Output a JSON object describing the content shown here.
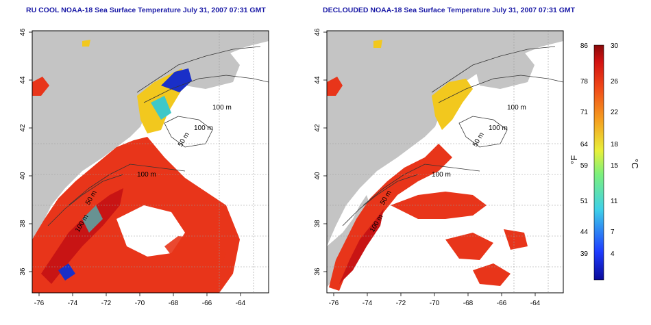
{
  "panels": [
    {
      "title": "RU COOL NOAA-18 Sea Surface Temperature July 31, 2007 07:31 GMT",
      "contour_labels": [
        "100 m",
        "100 m",
        "50 m",
        "100 m",
        "50 m",
        "100 m"
      ]
    },
    {
      "title": "DECLOUDED NOAA-18 Sea Surface Temperature July 31, 2007 07:31 GMT",
      "contour_labels": [
        "100 m",
        "100 m",
        "50 m",
        "100 m",
        "50 m",
        "100 m"
      ]
    }
  ],
  "axes": {
    "x_ticks": [
      "-76",
      "-74",
      "-72",
      "-70",
      "-68",
      "-66",
      "-64"
    ],
    "y_ticks": [
      "46",
      "44",
      "42",
      "40",
      "38",
      "36"
    ]
  },
  "colorbar": {
    "fahrenheit_label": "°F",
    "celsius_label": "°C",
    "fahrenheit_ticks": [
      "86",
      "78",
      "71",
      "64",
      "59",
      "51",
      "44",
      "39"
    ],
    "celsius_ticks": [
      "30",
      "26",
      "22",
      "18",
      "15",
      "11",
      "7",
      "4"
    ]
  },
  "colors": {
    "title": "#1a1aa6",
    "land": "#c4c4c4",
    "warm": "#e8351a",
    "hot": "#c81414",
    "mid": "#f2c81e",
    "cool": "#3fc8c8",
    "cold": "#1a2fc8"
  }
}
